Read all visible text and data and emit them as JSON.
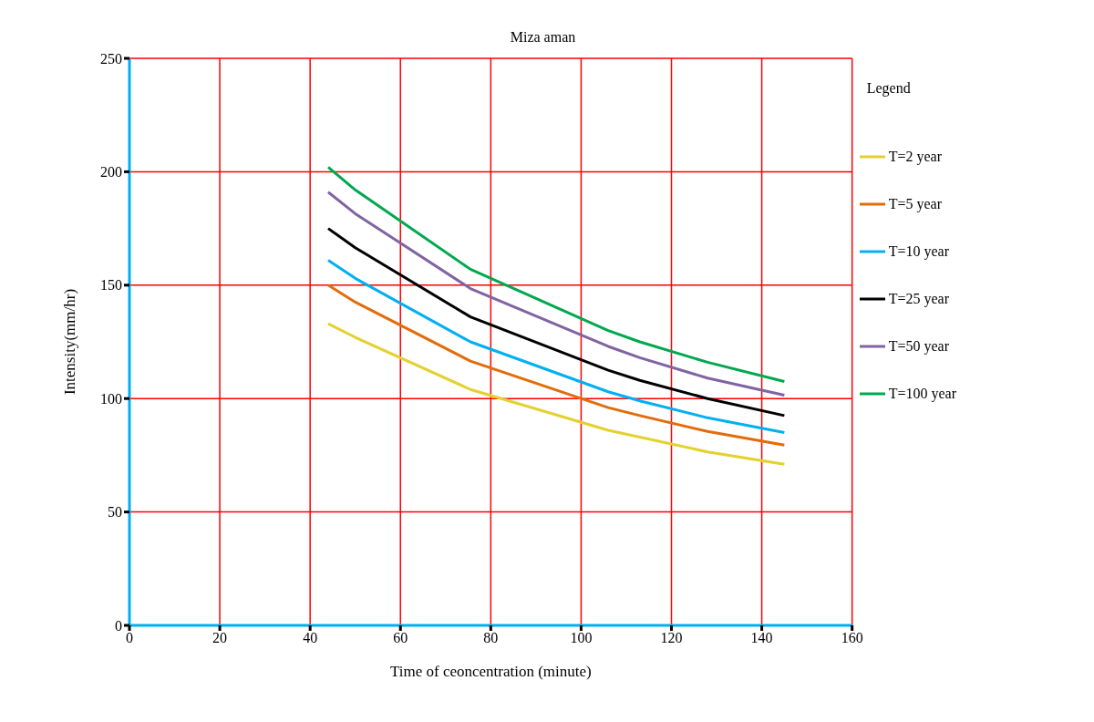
{
  "chart_data": {
    "type": "line",
    "title": "Miza aman",
    "xlabel": "Time of ceoncentration (minute)",
    "ylabel": "Intensity(mm/hr)",
    "legend_title": "Legend",
    "x": [
      44,
      50,
      75.5,
      106,
      113,
      128,
      145
    ],
    "series": [
      {
        "name": "T=2 year",
        "color": "#e3d12e",
        "values": [
          133,
          127,
          104,
          86,
          83,
          76.5,
          71
        ]
      },
      {
        "name": "T=5 year",
        "color": "#e36c0a",
        "values": [
          150,
          142.5,
          116.5,
          96,
          92.5,
          85.5,
          79.5
        ]
      },
      {
        "name": "T=10 year",
        "color": "#00b0f0",
        "values": [
          161,
          153,
          125,
          103,
          99,
          91.5,
          85
        ]
      },
      {
        "name": "T=25 year",
        "color": "#000000",
        "values": [
          175,
          166.5,
          136,
          112.5,
          108,
          100,
          92.5
        ]
      },
      {
        "name": "T=50 year",
        "color": "#8064a2",
        "values": [
          191,
          181.5,
          148.5,
          123,
          118,
          109,
          101.5
        ]
      },
      {
        "name": "T=100 year",
        "color": "#00a84f",
        "values": [
          202,
          192,
          157,
          130,
          125,
          116,
          107.5
        ]
      }
    ],
    "xlim": [
      0,
      160
    ],
    "xticks": [
      0,
      20,
      40,
      60,
      80,
      100,
      120,
      140,
      160
    ],
    "ylim": [
      0,
      250
    ],
    "yticks": [
      0,
      50,
      100,
      150,
      200,
      250
    ],
    "grid": true,
    "legend": "right",
    "marker": "none",
    "line_style": "solid"
  }
}
